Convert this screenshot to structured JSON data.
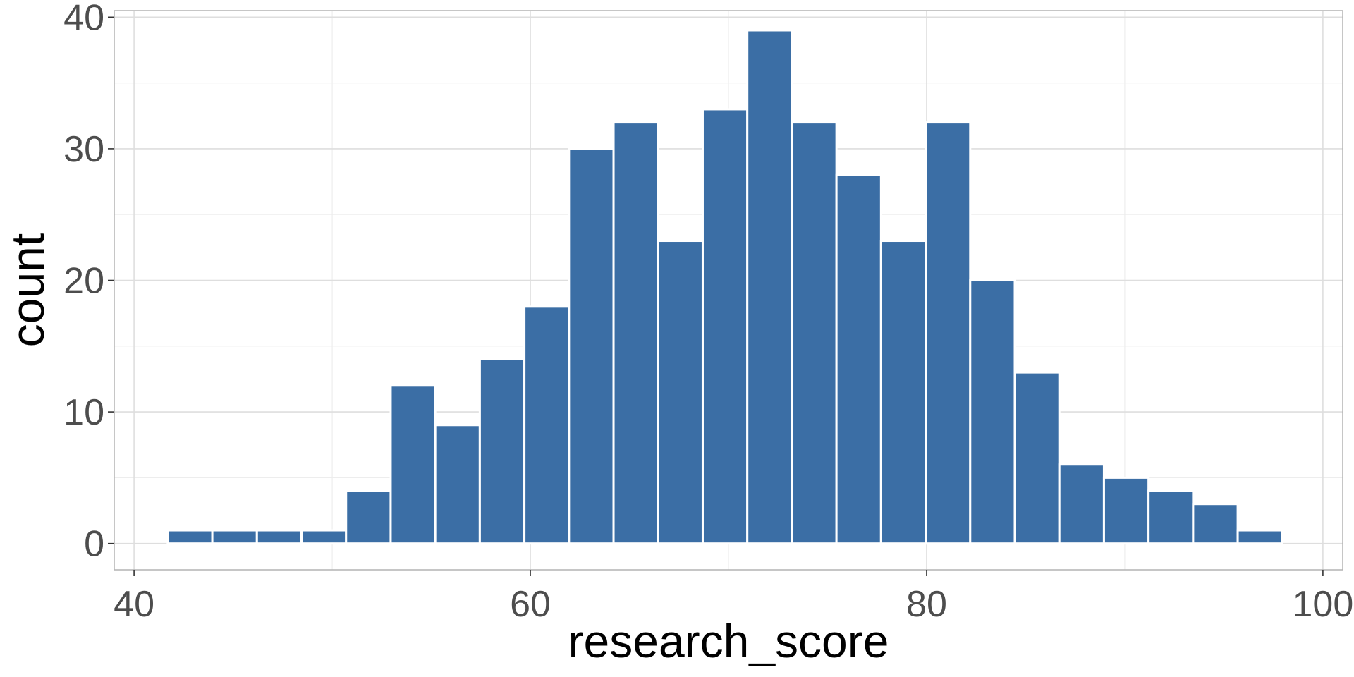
{
  "chart_data": {
    "type": "bar",
    "title": "",
    "xlabel": "research_score",
    "ylabel": "count",
    "xlim": [
      39,
      101
    ],
    "ylim": [
      -2,
      40.5
    ],
    "x_ticks": [
      40,
      60,
      80,
      100
    ],
    "y_ticks": [
      0,
      10,
      20,
      30,
      40
    ],
    "x_tick_labels": [
      "40",
      "60",
      "80",
      "100"
    ],
    "y_tick_labels": [
      "0",
      "10",
      "20",
      "30",
      "40"
    ],
    "grid": true,
    "bar_color": "#3b6ea5",
    "bins": [
      {
        "x0": 41.7,
        "x1": 43.95,
        "count": 1
      },
      {
        "x0": 43.95,
        "x1": 46.2,
        "count": 1
      },
      {
        "x0": 46.2,
        "x1": 48.45,
        "count": 1
      },
      {
        "x0": 48.45,
        "x1": 50.7,
        "count": 1
      },
      {
        "x0": 50.7,
        "x1": 52.95,
        "count": 4
      },
      {
        "x0": 52.95,
        "x1": 55.2,
        "count": 12
      },
      {
        "x0": 55.2,
        "x1": 57.45,
        "count": 9
      },
      {
        "x0": 57.45,
        "x1": 59.7,
        "count": 14
      },
      {
        "x0": 59.7,
        "x1": 61.95,
        "count": 18
      },
      {
        "x0": 61.95,
        "x1": 64.2,
        "count": 30
      },
      {
        "x0": 64.2,
        "x1": 66.45,
        "count": 32
      },
      {
        "x0": 66.45,
        "x1": 68.7,
        "count": 23
      },
      {
        "x0": 68.7,
        "x1": 70.95,
        "count": 33
      },
      {
        "x0": 70.95,
        "x1": 73.2,
        "count": 39
      },
      {
        "x0": 73.2,
        "x1": 75.45,
        "count": 32
      },
      {
        "x0": 75.45,
        "x1": 77.7,
        "count": 28
      },
      {
        "x0": 77.7,
        "x1": 79.95,
        "count": 23
      },
      {
        "x0": 79.95,
        "x1": 82.2,
        "count": 32
      },
      {
        "x0": 82.2,
        "x1": 84.45,
        "count": 20
      },
      {
        "x0": 84.45,
        "x1": 86.7,
        "count": 13
      },
      {
        "x0": 86.7,
        "x1": 88.95,
        "count": 6
      },
      {
        "x0": 88.95,
        "x1": 91.2,
        "count": 5
      },
      {
        "x0": 91.2,
        "x1": 93.45,
        "count": 4
      },
      {
        "x0": 93.45,
        "x1": 95.7,
        "count": 3
      },
      {
        "x0": 95.7,
        "x1": 97.95,
        "count": 1
      }
    ]
  }
}
